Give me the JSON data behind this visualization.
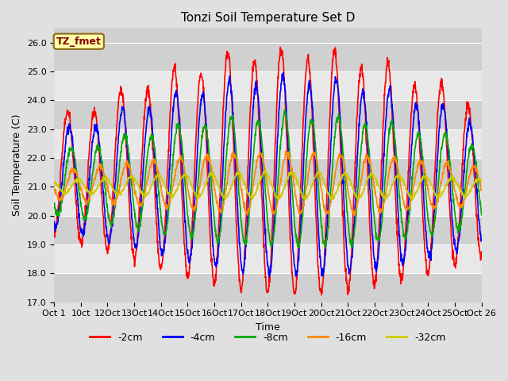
{
  "title": "Tonzi Soil Temperature Set D",
  "ylabel": "Soil Temperature (C)",
  "xlabel": "Time",
  "label_box_text": "TZ_fmet",
  "ylim": [
    17.0,
    26.5
  ],
  "yticks": [
    17.0,
    18.0,
    19.0,
    20.0,
    21.0,
    22.0,
    23.0,
    24.0,
    25.0,
    26.0
  ],
  "xtick_labels": [
    "Oct 1",
    "10ct",
    "12Oct",
    "13Oct",
    "14Oct",
    "15Oct",
    "16Oct",
    "17Oct",
    "18Oct",
    "19Oct",
    "20Oct",
    "21Oct",
    "22Oct",
    "23Oct",
    "24Oct",
    "25Oct",
    "Oct 26"
  ],
  "series": [
    {
      "label": "-2cm",
      "color": "#ff0000"
    },
    {
      "label": "-4cm",
      "color": "#0000ff"
    },
    {
      "label": "-8cm",
      "color": "#00aa00"
    },
    {
      "label": "-16cm",
      "color": "#ff8800"
    },
    {
      "label": "-32cm",
      "color": "#cccc00"
    }
  ],
  "bg_color": "#e0e0e0",
  "stripe_light": "#e8e8e8",
  "stripe_dark": "#d0d0d0",
  "title_fontsize": 11,
  "axis_label_fontsize": 9,
  "tick_fontsize": 8,
  "linewidth": 1.2
}
